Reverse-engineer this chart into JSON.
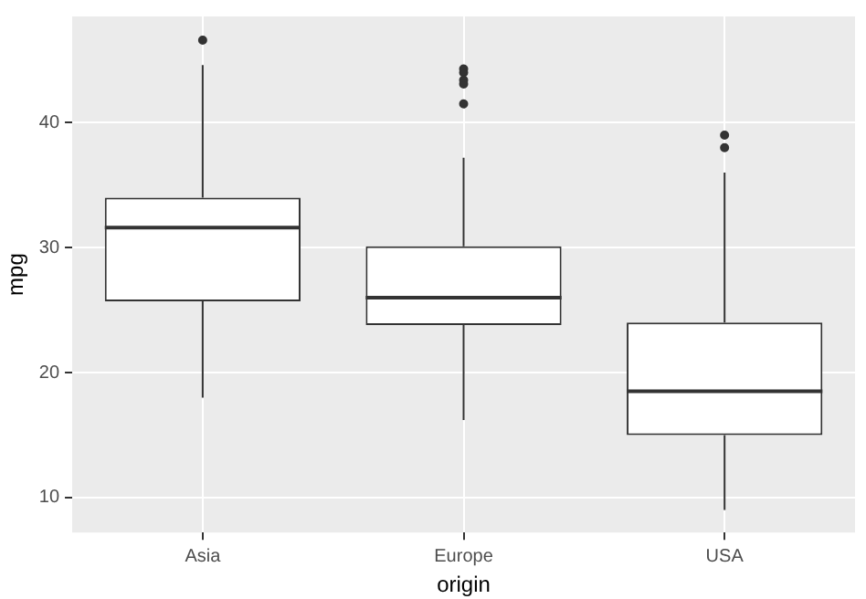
{
  "chart_data": {
    "type": "box",
    "xlabel": "origin",
    "ylabel": "mpg",
    "categories": [
      "Asia",
      "Europe",
      "USA"
    ],
    "boxes": [
      {
        "low": 18.0,
        "q1": 25.7,
        "median": 31.6,
        "q3": 34.0,
        "high": 44.6,
        "outliers": [
          46.6
        ]
      },
      {
        "low": 16.2,
        "q1": 23.8,
        "median": 26.0,
        "q3": 30.1,
        "high": 37.2,
        "outliers": [
          44.3,
          44.0,
          43.4,
          43.1,
          41.5
        ]
      },
      {
        "low": 9.0,
        "q1": 15.0,
        "median": 18.5,
        "q3": 24.0,
        "high": 36.0,
        "outliers": [
          39.0,
          38.0
        ]
      }
    ],
    "color": "#333333",
    "ylim": [
      7.2,
      48.5
    ],
    "yticks": [
      10,
      20,
      30,
      40
    ],
    "grid": true,
    "legend": false
  }
}
